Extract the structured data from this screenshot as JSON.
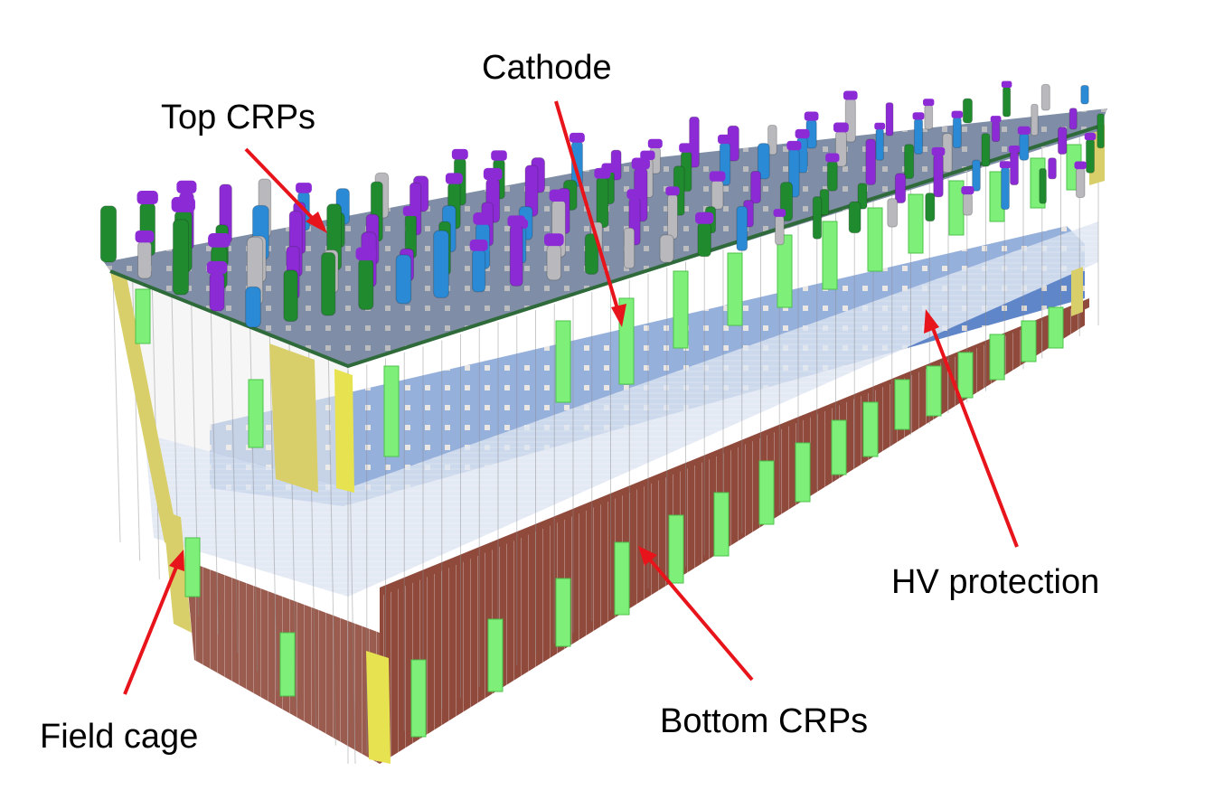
{
  "labels": {
    "top_crps": "Top CRPs",
    "cathode": "Cathode",
    "hv_protection": "HV protection",
    "field_cage": "Field cage",
    "bottom_crps": "Bottom CRPs"
  },
  "colors": {
    "arrow": "#e8141b",
    "chimney_green": "#1f8a2e",
    "chimney_purple": "#8c2bd6",
    "chimney_grey": "#b9b9bd",
    "chimney_blue": "#2a8ad6",
    "cathode_blue": "#5f86c9",
    "bottom_crp_brown": "#8f4a3c",
    "field_cage_yellow": "#d8cf6a",
    "module_green": "#7ef07a",
    "hv_band": "#dfe6f2",
    "top_deck": "#7f8ea6"
  },
  "icons": [
    "arrow-icon",
    "chimney-icon"
  ]
}
